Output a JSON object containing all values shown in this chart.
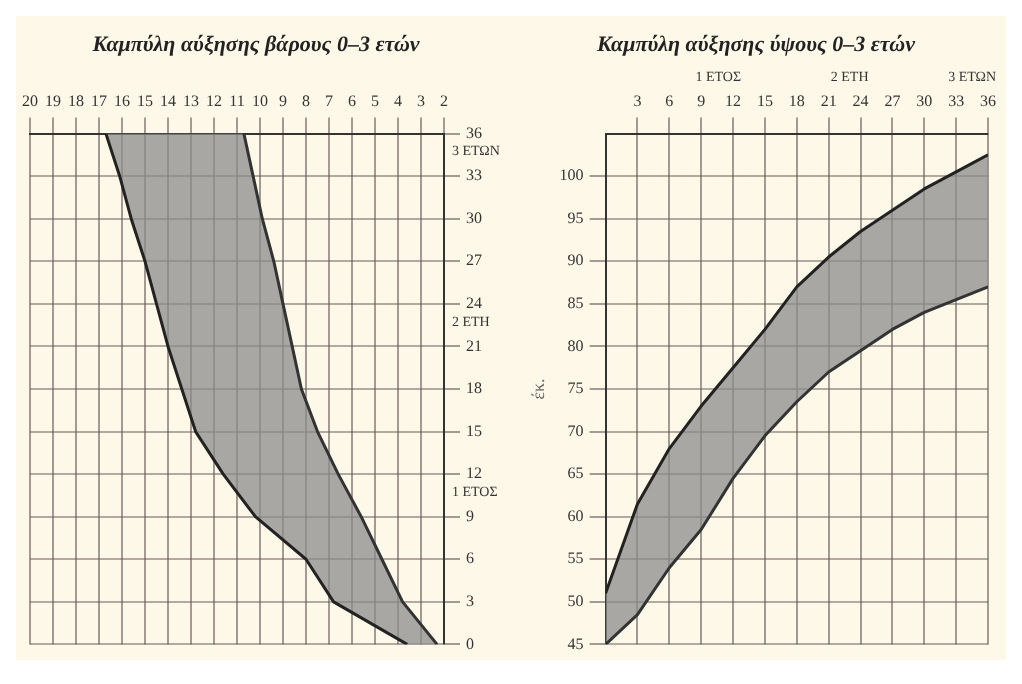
{
  "chart_data": [
    {
      "type": "line",
      "title": "Καμπύλη αύξησης βάρους 0–3 ετών",
      "orientation": "horizontal",
      "x": [
        0,
        3,
        6,
        9,
        12,
        15,
        18,
        21,
        24,
        27,
        30,
        33,
        36
      ],
      "series": [
        {
          "color": "#333333",
          "values": [
            2.3,
            3.8,
            4.7,
            5.6,
            6.6,
            7.5,
            8.2,
            8.6,
            9.0,
            9.4,
            9.9,
            10.3,
            10.7
          ]
        },
        {
          "type": "area",
          "color": "#8c8c8c",
          "values": [
            3.6,
            6.8,
            8.0,
            10.2,
            11.6,
            12.8,
            13.4,
            14.0,
            14.5,
            15.0,
            15.6,
            16.1,
            16.7
          ]
        }
      ],
      "xlim": [
        20,
        2
      ],
      "xticks": [
        20,
        19,
        18,
        17,
        16,
        15,
        14,
        13,
        12,
        11,
        10,
        9,
        8,
        7,
        6,
        5,
        4,
        3,
        2
      ],
      "ylim": [
        0,
        36
      ],
      "yticks": [
        0,
        3,
        6,
        9,
        12,
        15,
        18,
        21,
        24,
        27,
        30,
        33,
        36
      ],
      "annotations": [
        "1 ΕΤΟΣ",
        "2 ΕΤΗ",
        "3 ΕΤΩΝ"
      ],
      "grid": true,
      "legend": false,
      "marker": "none",
      "line_style": "solid"
    },
    {
      "type": "line",
      "title": "Καμπύλη αύξησης ύψους 0–3 ετών",
      "ylabel": "έκ.",
      "x": [
        0,
        3,
        6,
        9,
        12,
        15,
        18,
        21,
        24,
        27,
        30,
        33,
        36
      ],
      "series": [
        {
          "color": "#333333",
          "values": [
            45,
            48.5,
            54,
            58.5,
            64.5,
            69.5,
            73.5,
            77,
            79.5,
            82,
            84,
            85.5,
            87
          ]
        },
        {
          "type": "area",
          "color": "#8c8c8c",
          "values": [
            51,
            61.5,
            68,
            73,
            77.5,
            82,
            87,
            90.5,
            93.5,
            96,
            98.5,
            100.5,
            102.5
          ]
        }
      ],
      "xlim": [
        0,
        36
      ],
      "xticks": [
        3,
        6,
        9,
        12,
        15,
        18,
        21,
        24,
        27,
        30,
        33,
        36
      ],
      "ylim": [
        45,
        105
      ],
      "yticks": [
        45,
        50,
        55,
        60,
        65,
        70,
        75,
        80,
        85,
        90,
        95,
        100
      ],
      "annotations": [
        "1 ΕΤΟΣ",
        "2 ΕΤΗ",
        "3 ΕΤΩΝ"
      ],
      "grid": true,
      "legend": false,
      "marker": "none",
      "line_style": "solid"
    }
  ]
}
